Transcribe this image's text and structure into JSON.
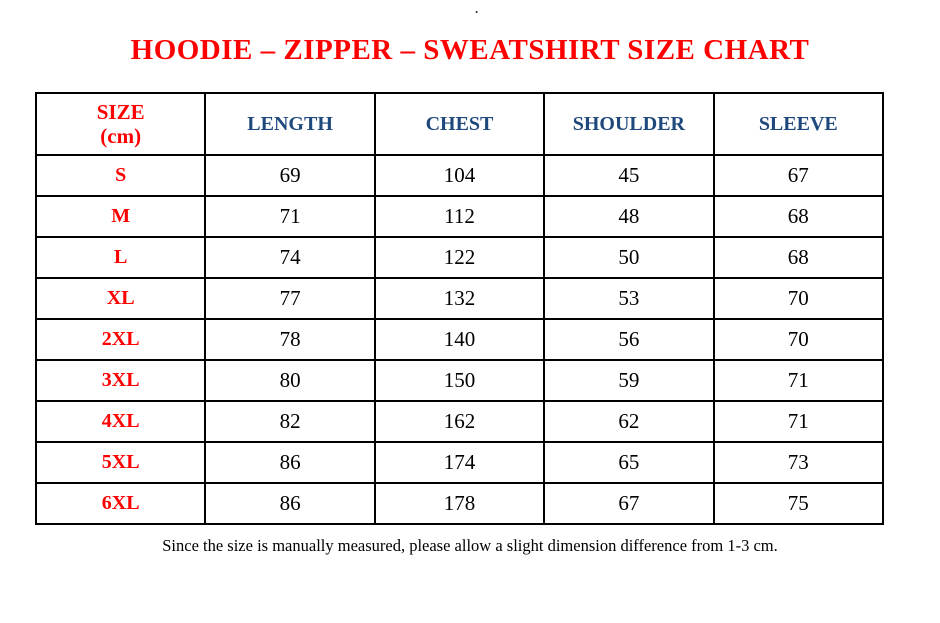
{
  "page": {
    "stray_dot": ".",
    "title": "HOODIE – ZIPPER – SWEATSHIRT SIZE CHART",
    "note": "Since the size is manually measured, please allow a slight dimension difference from 1-3 cm."
  },
  "colors": {
    "accent_red": "#FF0000",
    "header_blue": "#1F497D",
    "body_text": "#000000",
    "table_border": "#000000",
    "background": "#FFFFFF"
  },
  "table": {
    "headers": {
      "size_line1": "SIZE",
      "size_line2": "(cm)",
      "length": "LENGTH",
      "chest": "CHEST",
      "shoulder": "SHOULDER",
      "sleeve": "SLEEVE"
    },
    "rows": [
      {
        "size": "S",
        "length": "69",
        "chest": "104",
        "shoulder": "45",
        "sleeve": "67"
      },
      {
        "size": "M",
        "length": "71",
        "chest": "112",
        "shoulder": "48",
        "sleeve": "68"
      },
      {
        "size": "L",
        "length": "74",
        "chest": "122",
        "shoulder": "50",
        "sleeve": "68"
      },
      {
        "size": "XL",
        "length": "77",
        "chest": "132",
        "shoulder": "53",
        "sleeve": "70"
      },
      {
        "size": "2XL",
        "length": "78",
        "chest": "140",
        "shoulder": "56",
        "sleeve": "70"
      },
      {
        "size": "3XL",
        "length": "80",
        "chest": "150",
        "shoulder": "59",
        "sleeve": "71"
      },
      {
        "size": "4XL",
        "length": "82",
        "chest": "162",
        "shoulder": "62",
        "sleeve": "71"
      },
      {
        "size": "5XL",
        "length": "86",
        "chest": "174",
        "shoulder": "65",
        "sleeve": "73"
      },
      {
        "size": "6XL",
        "length": "86",
        "chest": "178",
        "shoulder": "67",
        "sleeve": "75"
      }
    ]
  },
  "chart_data": {
    "type": "table",
    "title": "HOODIE – ZIPPER – SWEATSHIRT SIZE CHART",
    "columns": [
      "SIZE (cm)",
      "LENGTH",
      "CHEST",
      "SHOULDER",
      "SLEEVE"
    ],
    "rows": [
      [
        "S",
        69,
        104,
        45,
        67
      ],
      [
        "M",
        71,
        112,
        48,
        68
      ],
      [
        "L",
        74,
        122,
        50,
        68
      ],
      [
        "XL",
        77,
        132,
        53,
        70
      ],
      [
        "2XL",
        78,
        140,
        56,
        70
      ],
      [
        "3XL",
        80,
        150,
        59,
        71
      ],
      [
        "4XL",
        82,
        162,
        62,
        71
      ],
      [
        "5XL",
        86,
        174,
        65,
        73
      ],
      [
        "6XL",
        86,
        178,
        67,
        75
      ]
    ]
  }
}
